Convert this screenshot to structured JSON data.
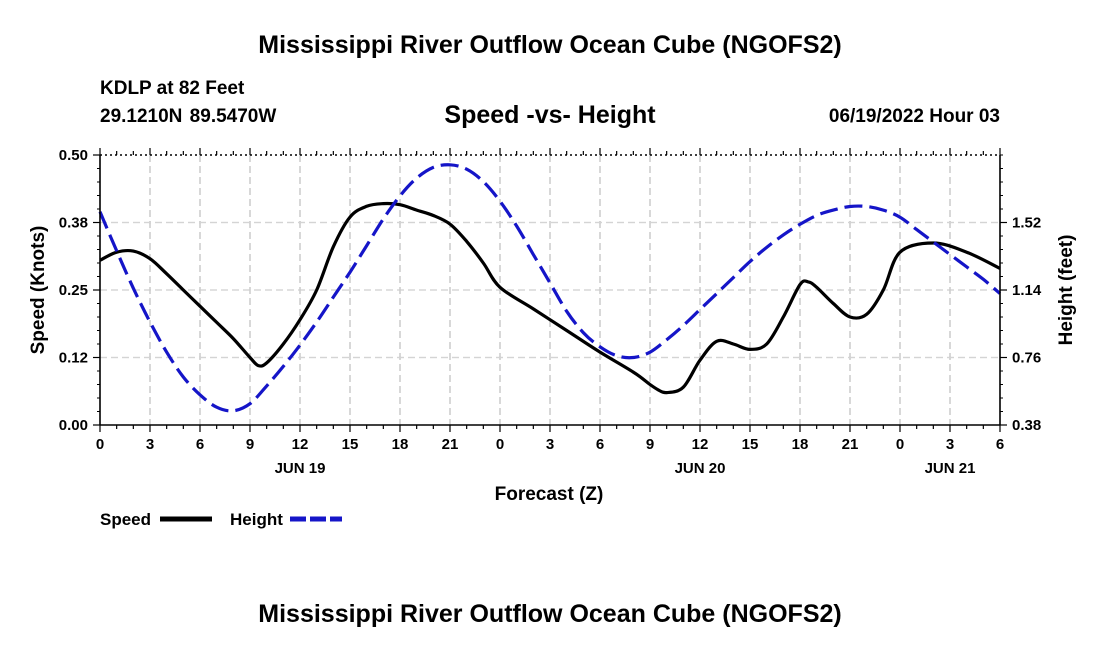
{
  "header": {
    "title": "Mississippi River Outflow Ocean Cube (NGOFS2)",
    "station": "KDLP at 82 Feet",
    "coords": "29.1210N  89.5470W",
    "subtitle": "Speed -vs- Height",
    "datetime": "06/19/2022 Hour 03"
  },
  "footer": {
    "title": "Mississippi River Outflow Ocean Cube (NGOFS2)"
  },
  "chart_data": {
    "type": "line",
    "title": "Speed -vs- Height",
    "xlabel": "Forecast (Z)",
    "ylabel": "Speed (Knots)",
    "y2label": "Height (feet)",
    "xlim": [
      0,
      54
    ],
    "ylim": [
      0,
      0.5
    ],
    "y2lim": [
      0.38,
      1.9
    ],
    "x_ticks": [
      0,
      3,
      6,
      9,
      12,
      15,
      18,
      21,
      24,
      27,
      30,
      33,
      36,
      39,
      42,
      45,
      48,
      51,
      54
    ],
    "x_tick_labels": [
      "0",
      "3",
      "6",
      "9",
      "12",
      "15",
      "18",
      "21",
      "0",
      "3",
      "6",
      "9",
      "12",
      "15",
      "18",
      "21",
      "0",
      "3",
      "6"
    ],
    "day_labels": [
      {
        "x": 12,
        "label": "JUN 19"
      },
      {
        "x": 36,
        "label": "JUN 20"
      },
      {
        "x": 51,
        "label": "JUN 21"
      }
    ],
    "y_ticks": [
      0,
      0.125,
      0.25,
      0.375,
      0.5
    ],
    "y_tick_labels": [
      "0.00",
      "0.12",
      "0.25",
      "0.38",
      "0.50"
    ],
    "y2_ticks": [
      0.38,
      0.76,
      1.14,
      1.52
    ],
    "y2_tick_labels": [
      "0.38",
      "0.76",
      "1.14",
      "1.52"
    ],
    "grid": true,
    "legend": {
      "placement": "bottom-left",
      "entries": [
        "Speed",
        "Height"
      ]
    },
    "series": [
      {
        "name": "Speed",
        "axis": "left",
        "color": "#000000",
        "dash": "solid",
        "x": [
          0,
          1,
          2,
          3,
          4,
          5,
          6,
          7,
          8,
          9,
          9.5,
          10,
          11,
          12,
          13,
          14,
          15,
          16,
          17,
          18,
          19,
          20,
          21,
          22,
          23,
          24,
          26,
          28,
          30,
          32,
          33,
          33.5,
          34,
          35,
          36,
          37,
          38,
          39,
          40,
          41,
          42,
          42.5,
          43,
          44,
          45,
          46,
          47,
          48,
          50,
          52,
          54
        ],
        "values": [
          0.305,
          0.32,
          0.322,
          0.308,
          0.28,
          0.25,
          0.22,
          0.19,
          0.16,
          0.125,
          0.11,
          0.115,
          0.15,
          0.195,
          0.25,
          0.33,
          0.385,
          0.405,
          0.41,
          0.408,
          0.398,
          0.388,
          0.372,
          0.34,
          0.3,
          0.255,
          0.215,
          0.175,
          0.135,
          0.098,
          0.075,
          0.065,
          0.06,
          0.07,
          0.12,
          0.155,
          0.15,
          0.14,
          0.15,
          0.2,
          0.26,
          0.265,
          0.255,
          0.225,
          0.2,
          0.205,
          0.25,
          0.32,
          0.337,
          0.32,
          0.29
        ]
      },
      {
        "name": "Height",
        "axis": "right",
        "color": "#1515c8",
        "dash": "dashed",
        "x": [
          0,
          1,
          2,
          3,
          4,
          5,
          6,
          7,
          8,
          9,
          10,
          11,
          12,
          13,
          14,
          15,
          16,
          17,
          18,
          19,
          20,
          21,
          22,
          23,
          24,
          25,
          26,
          27,
          28,
          29,
          30,
          31,
          32,
          33,
          34,
          35,
          36,
          37,
          38,
          39,
          40,
          41,
          42,
          43,
          44,
          45,
          46,
          47,
          48,
          49,
          50,
          51,
          52,
          53,
          54
        ],
        "values": [
          1.58,
          1.36,
          1.15,
          0.96,
          0.79,
          0.65,
          0.55,
          0.48,
          0.46,
          0.5,
          0.6,
          0.71,
          0.83,
          0.96,
          1.1,
          1.24,
          1.39,
          1.54,
          1.67,
          1.77,
          1.83,
          1.845,
          1.82,
          1.75,
          1.64,
          1.5,
          1.34,
          1.18,
          1.02,
          0.9,
          0.82,
          0.77,
          0.76,
          0.79,
          0.86,
          0.94,
          1.03,
          1.12,
          1.21,
          1.3,
          1.38,
          1.45,
          1.51,
          1.56,
          1.59,
          1.61,
          1.61,
          1.59,
          1.55,
          1.48,
          1.41,
          1.34,
          1.27,
          1.2,
          1.12
        ]
      }
    ]
  }
}
